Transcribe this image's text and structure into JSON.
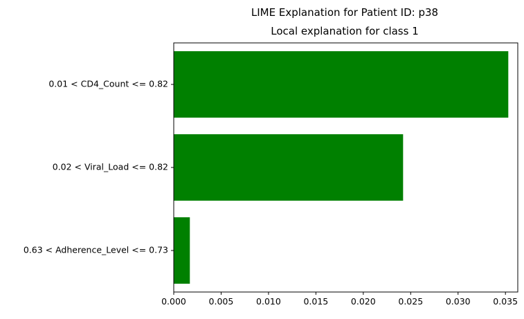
{
  "chart_data": {
    "type": "bar",
    "orientation": "horizontal",
    "suptitle": "LIME Explanation for Patient ID: p38",
    "title": "Local explanation for class 1",
    "xlabel": "",
    "ylabel": "",
    "categories": [
      "0.01 < CD4_Count <= 0.82",
      "0.02 < Viral_Load <= 0.82",
      "0.63 < Adherence_Level <= 0.73"
    ],
    "values": [
      0.0353,
      0.0242,
      0.0017
    ],
    "bar_color": "#008000",
    "xlim": [
      0.0,
      0.0363
    ],
    "xticks": [
      0.0,
      0.005,
      0.01,
      0.015,
      0.02,
      0.025,
      0.03,
      0.035
    ],
    "xtick_labels": [
      "0.000",
      "0.005",
      "0.010",
      "0.015",
      "0.020",
      "0.025",
      "0.030",
      "0.035"
    ],
    "grid": false,
    "legend": "none"
  }
}
